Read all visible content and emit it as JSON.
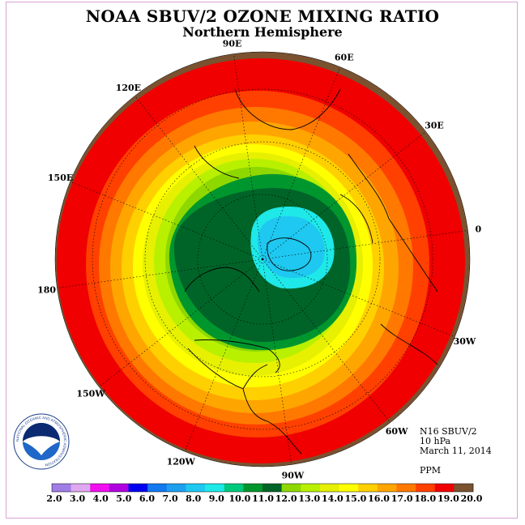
{
  "title": "NOAA SBUV/2 OZONE MIXING RATIO",
  "subtitle": "Northern Hemisphere",
  "longitude_labels": [
    {
      "text": "90E",
      "lon": 90
    },
    {
      "text": "60E",
      "lon": 60
    },
    {
      "text": "30E",
      "lon": 30
    },
    {
      "text": "0",
      "lon": 0
    },
    {
      "text": "30W",
      "lon": -30
    },
    {
      "text": "60W",
      "lon": -60
    },
    {
      "text": "90W",
      "lon": -90
    },
    {
      "text": "120W",
      "lon": -120
    },
    {
      "text": "150W",
      "lon": -150
    },
    {
      "text": "180",
      "lon": 180
    },
    {
      "text": "150E",
      "lon": 150
    },
    {
      "text": "120E",
      "lon": 120
    }
  ],
  "info": {
    "instrument": "N16 SBUV/2",
    "level": "10 hPa",
    "date": "March 11, 2014",
    "units": "PPM"
  },
  "colorbar": {
    "colors": [
      "#a07ce6",
      "#e0a8f0",
      "#f010f0",
      "#b000e0",
      "#0000f0",
      "#1478f0",
      "#1ea0f0",
      "#1ec8f0",
      "#1ee8e8",
      "#00c87c",
      "#00962e",
      "#006428",
      "#8ed800",
      "#b8f000",
      "#e6f000",
      "#ffff00",
      "#ffd000",
      "#ffa500",
      "#ff7800",
      "#ff4000",
      "#f00000",
      "#7a5230"
    ],
    "labels": [
      "2.0",
      "3.0",
      "4.0",
      "5.0",
      "6.0",
      "7.0",
      "8.0",
      "9.0",
      "10.0",
      "11.0",
      "12.0",
      "13.0",
      "14.0",
      "15.0",
      "16.0",
      "17.0",
      "18.0",
      "19.0",
      "20.0"
    ]
  },
  "logo": {
    "text": "NOAA",
    "ring_text": "NATIONAL OCEANIC AND ATMOSPHERIC ADMINISTRATION"
  }
}
